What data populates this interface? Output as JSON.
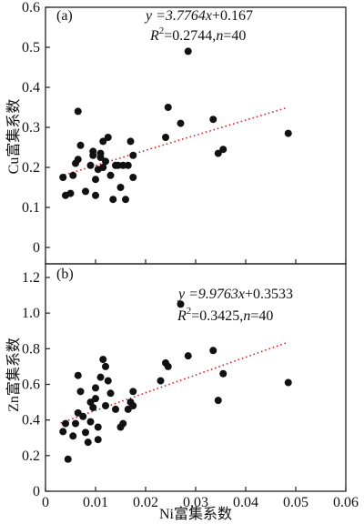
{
  "chart_data": [
    {
      "type": "scatter",
      "panel_label": "(a)",
      "ylabel": "Cu富集系数",
      "xlabel": "",
      "xlim": [
        0,
        0.06
      ],
      "ylim": [
        0,
        0.6
      ],
      "x_ticks": [
        0,
        0.01,
        0.02,
        0.03,
        0.04,
        0.05,
        0.06
      ],
      "y_ticks": [
        0,
        0.1,
        0.2,
        0.3,
        0.4,
        0.5,
        0.6
      ],
      "y_tick_labels": [
        "0",
        "0.1",
        "0.2",
        "0.3",
        "0.4",
        "0.5",
        "0.6"
      ],
      "equation": {
        "prefix": "y =3.7764",
        "var": "x",
        "suffix": "+0.167"
      },
      "stats": {
        "r": "R",
        "sup": "2",
        "value": "=0.2744,",
        "n": "n",
        "nval": "=40"
      },
      "fit": {
        "slope": 3.7764,
        "intercept": 0.167,
        "x_range": [
          0.003,
          0.048
        ]
      },
      "points": [
        [
          0.0035,
          0.175
        ],
        [
          0.004,
          0.13
        ],
        [
          0.005,
          0.135
        ],
        [
          0.0055,
          0.18
        ],
        [
          0.006,
          0.21
        ],
        [
          0.0065,
          0.34
        ],
        [
          0.007,
          0.255
        ],
        [
          0.008,
          0.14
        ],
        [
          0.009,
          0.205
        ],
        [
          0.0095,
          0.24
        ],
        [
          0.0095,
          0.23
        ],
        [
          0.01,
          0.13
        ],
        [
          0.01,
          0.17
        ],
        [
          0.0105,
          0.195
        ],
        [
          0.011,
          0.235
        ],
        [
          0.011,
          0.225
        ],
        [
          0.0115,
          0.265
        ],
        [
          0.012,
          0.215
        ],
        [
          0.0125,
          0.275
        ],
        [
          0.013,
          0.18
        ],
        [
          0.0135,
          0.12
        ],
        [
          0.014,
          0.205
        ],
        [
          0.0145,
          0.205
        ],
        [
          0.015,
          0.15
        ],
        [
          0.0155,
          0.205
        ],
        [
          0.016,
          0.12
        ],
        [
          0.0165,
          0.205
        ],
        [
          0.017,
          0.265
        ],
        [
          0.0175,
          0.23
        ],
        [
          0.0175,
          0.175
        ],
        [
          0.024,
          0.275
        ],
        [
          0.0245,
          0.35
        ],
        [
          0.027,
          0.31
        ],
        [
          0.0285,
          0.49
        ],
        [
          0.0335,
          0.32
        ],
        [
          0.0345,
          0.235
        ],
        [
          0.0355,
          0.245
        ],
        [
          0.0485,
          0.285
        ],
        [
          0.0065,
          0.22
        ],
        [
          0.0115,
          0.2
        ]
      ]
    },
    {
      "type": "scatter",
      "panel_label": "(b)",
      "ylabel": "Zn富集系数",
      "xlabel": "Ni富集系数",
      "xlim": [
        0,
        0.06
      ],
      "ylim": [
        0,
        1.2
      ],
      "x_ticks": [
        0,
        0.01,
        0.02,
        0.03,
        0.04,
        0.05,
        0.06
      ],
      "x_tick_labels": [
        "0",
        "0.01",
        "0.02",
        "0.03",
        "0.04",
        "0.05",
        "0.06"
      ],
      "y_ticks": [
        0,
        0.2,
        0.4,
        0.6,
        0.8,
        1.0,
        1.2
      ],
      "y_tick_labels": [
        "0",
        "0.2",
        "0.4",
        "0.6",
        "0.8",
        "1.0",
        "1.2"
      ],
      "equation": {
        "prefix": "y =9.9763",
        "var": "x",
        "suffix": "+0.3533"
      },
      "stats": {
        "r": "R",
        "sup": "2",
        "value": "=0.3425,",
        "n": "n",
        "nval": "=40"
      },
      "fit": {
        "slope": 9.9763,
        "intercept": 0.3533,
        "x_range": [
          0.003,
          0.048
        ]
      },
      "points": [
        [
          0.0035,
          0.335
        ],
        [
          0.004,
          0.38
        ],
        [
          0.0045,
          0.18
        ],
        [
          0.0055,
          0.31
        ],
        [
          0.006,
          0.38
        ],
        [
          0.0065,
          0.65
        ],
        [
          0.007,
          0.56
        ],
        [
          0.0075,
          0.42
        ],
        [
          0.008,
          0.33
        ],
        [
          0.0085,
          0.275
        ],
        [
          0.009,
          0.5
        ],
        [
          0.0095,
          0.47
        ],
        [
          0.01,
          0.58
        ],
        [
          0.01,
          0.52
        ],
        [
          0.0105,
          0.29
        ],
        [
          0.011,
          0.64
        ],
        [
          0.0115,
          0.74
        ],
        [
          0.012,
          0.7
        ],
        [
          0.012,
          0.48
        ],
        [
          0.0125,
          0.62
        ],
        [
          0.013,
          0.55
        ],
        [
          0.014,
          0.46
        ],
        [
          0.015,
          0.36
        ],
        [
          0.0155,
          0.38
        ],
        [
          0.0165,
          0.46
        ],
        [
          0.017,
          0.5
        ],
        [
          0.0175,
          0.56
        ],
        [
          0.023,
          0.62
        ],
        [
          0.024,
          0.72
        ],
        [
          0.0245,
          0.7
        ],
        [
          0.027,
          1.05
        ],
        [
          0.0285,
          0.76
        ],
        [
          0.0335,
          0.79
        ],
        [
          0.0345,
          0.51
        ],
        [
          0.0355,
          0.66
        ],
        [
          0.0485,
          0.61
        ],
        [
          0.0105,
          0.36
        ],
        [
          0.009,
          0.39
        ],
        [
          0.0065,
          0.44
        ],
        [
          0.0175,
          0.48
        ]
      ]
    }
  ]
}
